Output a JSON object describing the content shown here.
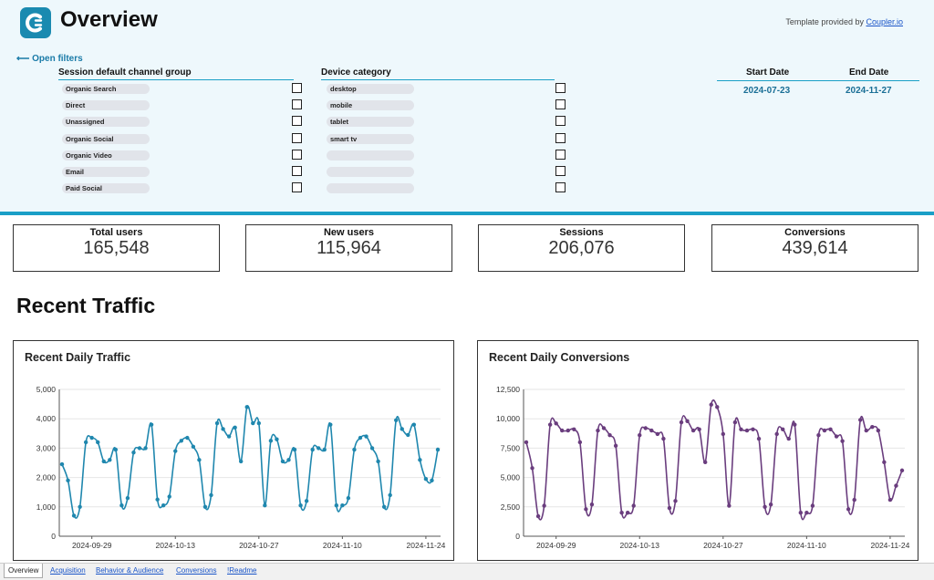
{
  "header": {
    "title": "Overview",
    "provided_prefix": "Template provided by ",
    "provided_link": "Coupler.io",
    "open_filters": "⟵ Open filters"
  },
  "filters": {
    "channel": {
      "label": "Session default channel group",
      "options": [
        "Organic Search",
        "Direct",
        "Unassigned",
        "Organic Social",
        "Organic Video",
        "Email",
        "Paid Social"
      ]
    },
    "device": {
      "label": "Device category",
      "options": [
        "desktop",
        "mobile",
        "tablet",
        "smart tv",
        "",
        "",
        ""
      ]
    },
    "dates": {
      "start_label": "Start Date",
      "end_label": "End Date",
      "start_value": "2024-07-23",
      "end_value": "2024-11-27"
    }
  },
  "kpis": [
    {
      "label": "Total users",
      "value": "165,548"
    },
    {
      "label": "New users",
      "value": "115,964"
    },
    {
      "label": "Sessions",
      "value": "206,076"
    },
    {
      "label": "Conversions",
      "value": "439,614"
    }
  ],
  "section_title": "Recent Traffic",
  "colors": {
    "accent": "#1a9fc7",
    "traffic": "#1f87ae",
    "conversions": "#6a3d7e"
  },
  "chart_data": [
    {
      "type": "line",
      "title": "Recent Daily Traffic",
      "xlabel": "",
      "ylabel": "",
      "ylim": [
        0,
        5000
      ],
      "yticks": [
        0,
        1000,
        2000,
        3000,
        4000,
        5000
      ],
      "ytick_labels": [
        "0",
        "1,000",
        "2,000",
        "3,000",
        "4,000",
        "5,000"
      ],
      "xtick_labels": [
        "2024-09-29",
        "2024-10-13",
        "2024-10-27",
        "2024-11-10",
        "2024-11-24"
      ],
      "xtick_index": [
        5,
        19,
        33,
        47,
        61
      ],
      "series": [
        {
          "values": [
            2450,
            1900,
            700,
            1000,
            3200,
            3350,
            3200,
            2550,
            2600,
            2950,
            1050,
            1300,
            2850,
            3000,
            3000,
            3800,
            1250,
            1050,
            1350,
            2900,
            3250,
            3350,
            3050,
            2600,
            1000,
            1400,
            3850,
            3650,
            3400,
            3700,
            2550,
            4400,
            3850,
            3850,
            1050,
            3250,
            3300,
            2550,
            2600,
            2950,
            1050,
            1200,
            2950,
            3000,
            2950,
            3800,
            1050,
            1050,
            1300,
            2950,
            3350,
            3400,
            3000,
            2550,
            1000,
            1400,
            3950,
            3650,
            3450,
            3800,
            2600,
            1950,
            1900,
            2950
          ]
        }
      ]
    },
    {
      "type": "line",
      "title": "Recent Daily Conversions",
      "xlabel": "",
      "ylabel": "",
      "ylim": [
        0,
        12500
      ],
      "yticks": [
        0,
        2500,
        5000,
        7500,
        10000,
        12500
      ],
      "ytick_labels": [
        "0",
        "2,500",
        "5,000",
        "7,500",
        "10,000",
        "12,500"
      ],
      "xtick_labels": [
        "2024-09-29",
        "2024-10-13",
        "2024-10-27",
        "2024-11-10",
        "2024-11-24"
      ],
      "xtick_index": [
        5,
        19,
        33,
        47,
        61
      ],
      "series": [
        {
          "values": [
            8000,
            5800,
            1700,
            2600,
            9500,
            9600,
            9000,
            9000,
            9100,
            8000,
            2300,
            2700,
            9000,
            9200,
            8600,
            7700,
            2000,
            2000,
            2600,
            8600,
            9200,
            9000,
            8700,
            8300,
            2400,
            3000,
            9700,
            9800,
            9000,
            9100,
            6300,
            11200,
            11000,
            8700,
            2600,
            9700,
            9100,
            9000,
            9100,
            8300,
            2500,
            2700,
            8700,
            9100,
            8300,
            9500,
            2000,
            2000,
            2600,
            8600,
            9000,
            9100,
            8500,
            8100,
            2300,
            3100,
            9900,
            9000,
            9300,
            9000,
            6300,
            3100,
            4300,
            5600
          ]
        }
      ]
    }
  ],
  "tabs": [
    "Overview",
    "Acquisition",
    "Behavior & Audience",
    "Conversions",
    "!Readme"
  ]
}
